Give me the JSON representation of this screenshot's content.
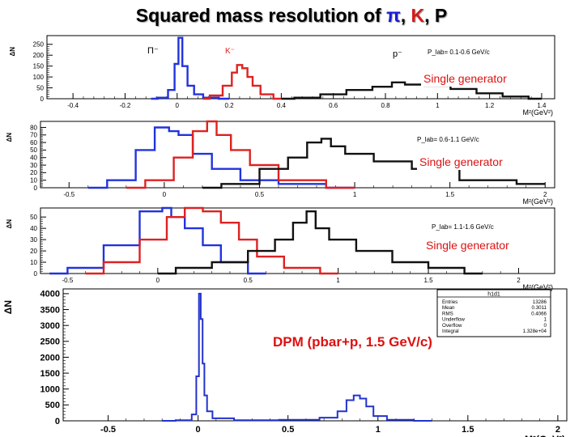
{
  "title": {
    "prefix": "Squared mass resolution of ",
    "pi": "π",
    "sep1": ", ",
    "k": "K",
    "sep2": ", ",
    "p": "P"
  },
  "colors": {
    "pion": "#2233dd",
    "kaon": "#dd2222",
    "proton": "#111111",
    "total": "#2233cc",
    "annotation": "#dd1111",
    "axis": "#000000"
  },
  "chart_data": [
    {
      "type": "line",
      "ylabel": "ΔN",
      "xlabel": "M²(GeV²)",
      "xlim": [
        -0.5,
        1.45
      ],
      "ylim": [
        0,
        290
      ],
      "xticks": [
        -0.4,
        -0.2,
        0,
        0.2,
        0.4,
        0.6,
        0.8,
        1,
        1.2,
        1.4
      ],
      "yticks": [
        0,
        50,
        100,
        150,
        200,
        250
      ],
      "annotations": [
        "P_lab= 0.1-0.6 GeV/c",
        "Single generator",
        "Π⁻",
        "K⁻",
        "p⁻"
      ],
      "series": [
        {
          "name": "Π⁻",
          "color": "pion",
          "x": [
            -0.1,
            -0.05,
            -0.02,
            0.0,
            0.01,
            0.03,
            0.05,
            0.08,
            0.12,
            0.2
          ],
          "y": [
            0,
            5,
            40,
            160,
            280,
            150,
            60,
            20,
            5,
            0
          ]
        },
        {
          "name": "K⁻",
          "color": "kaon",
          "x": [
            0.1,
            0.15,
            0.2,
            0.22,
            0.24,
            0.26,
            0.28,
            0.3,
            0.34,
            0.4
          ],
          "y": [
            0,
            15,
            60,
            120,
            155,
            140,
            100,
            60,
            20,
            0
          ]
        },
        {
          "name": "p⁻",
          "color": "proton",
          "x": [
            0.4,
            0.5,
            0.6,
            0.7,
            0.8,
            0.85,
            0.9,
            1.0,
            1.1,
            1.2,
            1.3,
            1.4
          ],
          "y": [
            0,
            5,
            20,
            40,
            55,
            75,
            65,
            60,
            45,
            25,
            10,
            0
          ]
        }
      ]
    },
    {
      "type": "line",
      "ylabel": "ΔN",
      "xlabel": "M²(GeV²)",
      "xlim": [
        -0.65,
        2.05
      ],
      "ylim": [
        0,
        88
      ],
      "xticks": [
        -0.5,
        0,
        0.5,
        1,
        1.5,
        2
      ],
      "yticks": [
        0,
        10,
        20,
        30,
        40,
        50,
        60,
        70,
        80
      ],
      "annotations": [
        "P_lab= 0.6-1.1 GeV/c",
        "Single generator"
      ],
      "series": [
        {
          "name": "",
          "color": "pion",
          "x": [
            -0.4,
            -0.2,
            -0.1,
            0.0,
            0.05,
            0.1,
            0.2,
            0.3,
            0.5,
            0.7,
            1.0
          ],
          "y": [
            0,
            10,
            50,
            80,
            75,
            70,
            45,
            25,
            10,
            5,
            0
          ]
        },
        {
          "name": "",
          "color": "kaon",
          "x": [
            -0.2,
            0.0,
            0.1,
            0.2,
            0.25,
            0.3,
            0.4,
            0.5,
            0.7,
            1.0
          ],
          "y": [
            0,
            10,
            40,
            75,
            88,
            70,
            50,
            30,
            10,
            0
          ]
        },
        {
          "name": "",
          "color": "proton",
          "x": [
            0.2,
            0.4,
            0.6,
            0.7,
            0.8,
            0.85,
            0.9,
            1.0,
            1.2,
            1.4,
            1.7,
            2.0
          ],
          "y": [
            0,
            5,
            25,
            40,
            60,
            65,
            55,
            45,
            35,
            25,
            10,
            5
          ]
        }
      ]
    },
    {
      "type": "line",
      "ylabel": "ΔN",
      "xlabel": "M²(GeV²)",
      "xlim": [
        -0.65,
        2.2
      ],
      "ylim": [
        0,
        58
      ],
      "xticks": [
        -0.5,
        0,
        0.5,
        1,
        1.5,
        2
      ],
      "yticks": [
        0,
        10,
        20,
        30,
        40,
        50
      ],
      "annotations": [
        "P_lab= 1.1-1.6 GeV/c",
        "Single generator"
      ],
      "series": [
        {
          "name": "",
          "color": "pion",
          "x": [
            -0.6,
            -0.4,
            -0.2,
            0.0,
            0.05,
            0.1,
            0.2,
            0.3,
            0.4,
            0.6
          ],
          "y": [
            0,
            5,
            25,
            55,
            58,
            50,
            40,
            25,
            10,
            0
          ]
        },
        {
          "name": "",
          "color": "kaon",
          "x": [
            -0.4,
            -0.2,
            0.0,
            0.1,
            0.2,
            0.3,
            0.4,
            0.5,
            0.6,
            0.8,
            1.0
          ],
          "y": [
            0,
            10,
            30,
            50,
            58,
            55,
            45,
            30,
            15,
            5,
            0
          ]
        },
        {
          "name": "",
          "color": "proton",
          "x": [
            0.0,
            0.2,
            0.4,
            0.6,
            0.7,
            0.8,
            0.85,
            0.9,
            1.0,
            1.2,
            1.4,
            1.6,
            1.8
          ],
          "y": [
            0,
            5,
            10,
            20,
            30,
            45,
            55,
            40,
            30,
            20,
            10,
            5,
            0
          ]
        }
      ]
    },
    {
      "type": "line",
      "ylabel": "ΔN",
      "xlabel": "M²(GeV²)",
      "xlim": [
        -0.75,
        2.05
      ],
      "ylim": [
        0,
        4150
      ],
      "xticks": [
        -0.5,
        0,
        0.5,
        1,
        1.5,
        2
      ],
      "yticks": [
        0,
        500,
        1000,
        1500,
        2000,
        2500,
        3000,
        3500,
        4000
      ],
      "annotations": [
        "DPM (pbar+p,  1.5 GeV/c)"
      ],
      "stats_box": {
        "title": "h1d1",
        "rows": [
          [
            "Entries",
            "13286"
          ],
          [
            "Mean",
            "0.3011"
          ],
          [
            "RMS",
            "0.4066"
          ],
          [
            "Underflow",
            "1"
          ],
          [
            "Overflow",
            "0"
          ],
          [
            "Integral",
            "1.328e+04"
          ]
        ]
      },
      "series": [
        {
          "name": "",
          "color": "total",
          "x": [
            -0.2,
            -0.05,
            -0.02,
            0.0,
            0.01,
            0.02,
            0.03,
            0.04,
            0.06,
            0.1,
            0.3,
            0.6,
            0.75,
            0.8,
            0.85,
            0.88,
            0.92,
            0.95,
            1.0,
            1.1,
            1.3
          ],
          "y": [
            0,
            20,
            200,
            1400,
            4000,
            3200,
            1800,
            800,
            300,
            80,
            20,
            30,
            100,
            300,
            650,
            800,
            700,
            450,
            150,
            30,
            0
          ]
        }
      ]
    }
  ]
}
